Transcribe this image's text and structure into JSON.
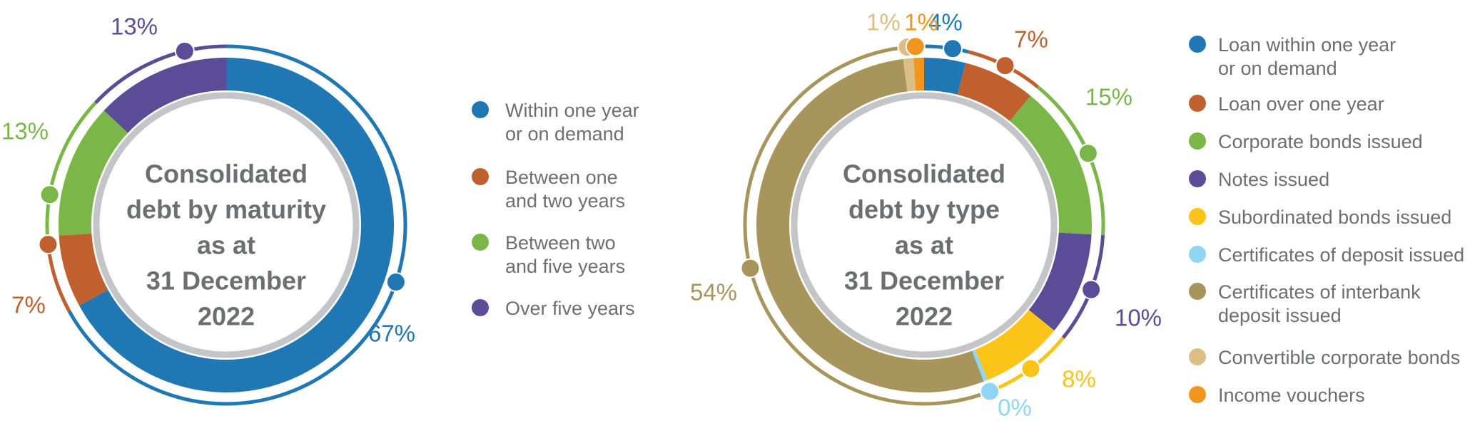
{
  "chart_data": [
    {
      "type": "donut",
      "center_text": [
        "Consolidated",
        "debt by maturity",
        "as at",
        "31 December",
        "2022"
      ],
      "categories": [
        "Within one year\nor on demand",
        "Between one\nand two years",
        "Between two\nand five years",
        "Over five years"
      ],
      "values": [
        67,
        7,
        13,
        13
      ],
      "labels": [
        "67%",
        "7%",
        "13%",
        "13%"
      ],
      "colors": [
        "#1f77b4",
        "#c0602f",
        "#7ab648",
        "#5a4c96"
      ],
      "legend_position": "right"
    },
    {
      "type": "donut",
      "center_text": [
        "Consolidated",
        "debt by type",
        "as at",
        "31 December",
        "2022"
      ],
      "categories": [
        "Loan within one year\nor on demand",
        "Loan over one year",
        "Corporate bonds issued",
        "Notes issued",
        "Subordinated bonds issued",
        "Certificates of deposit issued",
        "Certificates of interbank\ndeposit issued",
        "Convertible corporate bonds",
        "Income vouchers"
      ],
      "values": [
        4,
        7,
        15,
        10,
        8,
        0.4,
        54,
        1,
        1
      ],
      "labels": [
        "4%",
        "7%",
        "15%",
        "10%",
        "8%",
        "0%",
        "54%",
        "1%",
        "1%"
      ],
      "colors": [
        "#1f77b4",
        "#c0602f",
        "#7ab648",
        "#5a4c96",
        "#fcc419",
        "#8fd6f2",
        "#a8955c",
        "#dcbd86",
        "#f0961e"
      ],
      "legend_position": "right"
    }
  ]
}
